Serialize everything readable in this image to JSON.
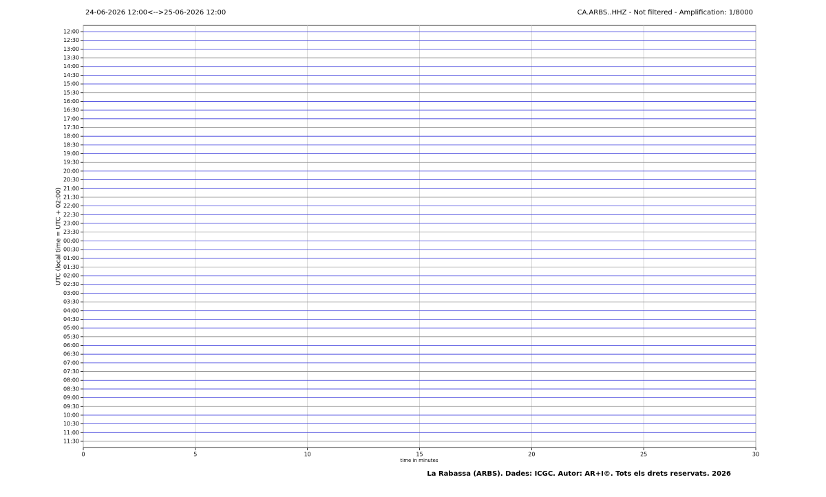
{
  "chart_data": {
    "type": "helicorder",
    "title_left": "24-06-2026 12:00<-->25-06-2026 12:00",
    "title_right": "CA.ARBS..HHZ - Not filtered - Amplification: 1/8000",
    "x_label": "time in minutes",
    "y_label": "UTC (local time = UTC + 02:00)",
    "footer": "La Rabassa (ARBS). Dades: ICGC. Autor: AR+I©. Tots els drets reservats. 2026",
    "xlim": [
      0,
      30
    ],
    "xticks": [
      0,
      5,
      10,
      15,
      20,
      25,
      30
    ],
    "grid": true,
    "trace_colors": [
      "#3c3cdc",
      "#3c3cdc",
      "#3c3cdc",
      "#8c8c8c"
    ],
    "categories": [
      "12:00",
      "12:30",
      "13:00",
      "13:30",
      "14:00",
      "14:30",
      "15:00",
      "15:30",
      "16:00",
      "16:30",
      "17:00",
      "17:30",
      "18:00",
      "18:30",
      "19:00",
      "19:30",
      "20:00",
      "20:30",
      "21:00",
      "21:30",
      "22:00",
      "22:30",
      "23:00",
      "23:30",
      "00:00",
      "00:30",
      "01:00",
      "01:30",
      "02:00",
      "02:30",
      "03:00",
      "03:30",
      "04:00",
      "04:30",
      "05:00",
      "05:30",
      "06:00",
      "06:30",
      "07:00",
      "07:30",
      "08:00",
      "08:30",
      "09:00",
      "09:30",
      "10:00",
      "10:30",
      "11:00",
      "11:30"
    ]
  }
}
